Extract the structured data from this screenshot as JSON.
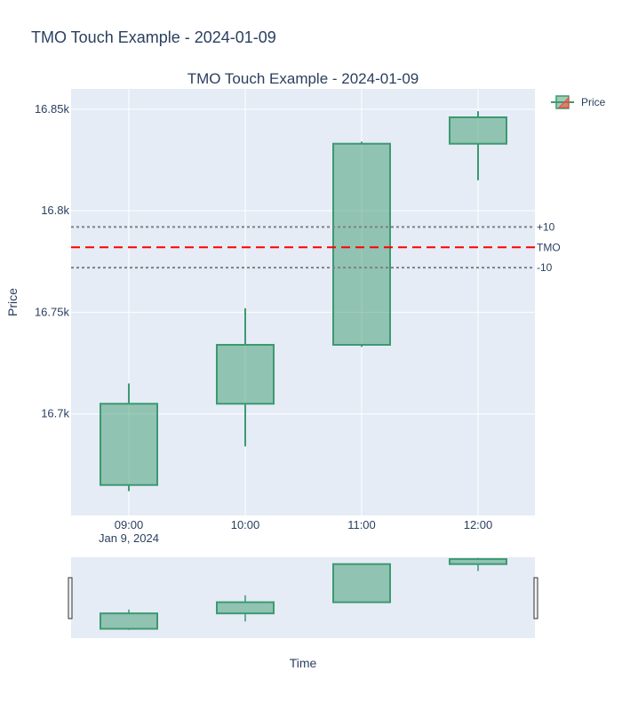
{
  "page_title": "TMO Touch Example - 2024-01-09",
  "chart_data": {
    "type": "candlestick",
    "title": "TMO Touch Example - 2024-01-09",
    "xlabel": "Time",
    "ylabel": "Price",
    "x": [
      "09:00",
      "10:00",
      "11:00",
      "12:00"
    ],
    "x_date_label": "Jan 9, 2024",
    "ylim": [
      16650,
      16860
    ],
    "yticks": [
      16700,
      16750,
      16800,
      16850
    ],
    "ytick_labels": [
      "16.7k",
      "16.75k",
      "16.8k",
      "16.85k"
    ],
    "series": [
      {
        "name": "Price",
        "open": [
          16665,
          16705,
          16734,
          16833
        ],
        "high": [
          16715,
          16752,
          16834,
          16849
        ],
        "low": [
          16662,
          16684,
          16733,
          16815
        ],
        "close": [
          16705,
          16734,
          16833,
          16846
        ]
      }
    ],
    "reference_lines": [
      {
        "label": "+10",
        "value": 16792,
        "style": "dotted",
        "color": "#808080"
      },
      {
        "label": "TMO",
        "value": 16782,
        "style": "dashed",
        "color": "#ff0000"
      },
      {
        "label": "-10",
        "value": 16772,
        "style": "dotted",
        "color": "#808080"
      }
    ],
    "increasing_color": "#3d9970",
    "plot_bgcolor": "#e5ecf6",
    "legend_position": "top-right",
    "grid": true,
    "rangeslider": true
  }
}
